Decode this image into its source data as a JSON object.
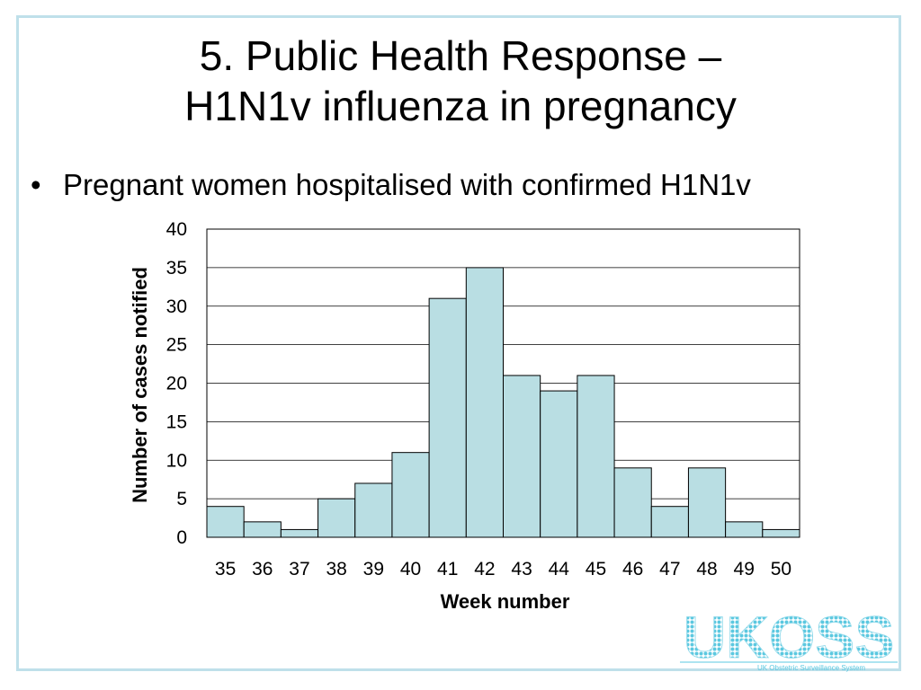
{
  "slide": {
    "title_line1": "5. Public Health Response –",
    "title_line2": "H1N1v influenza in pregnancy",
    "bullet": "Pregnant women hospitalised with confirmed H1N1v"
  },
  "logo": {
    "text": "UKOSS",
    "subtitle": "UK Obstetric Surveillance System",
    "color": "#5bc8e0"
  },
  "chart_data": {
    "type": "bar",
    "categories": [
      "35",
      "36",
      "37",
      "38",
      "39",
      "40",
      "41",
      "42",
      "43",
      "44",
      "45",
      "46",
      "47",
      "48",
      "49",
      "50"
    ],
    "values": [
      4,
      2,
      1,
      5,
      7,
      11,
      31,
      35,
      21,
      19,
      21,
      9,
      4,
      9,
      2,
      1
    ],
    "xlabel": "Week number",
    "ylabel": "Number of cases notified",
    "ylim": [
      0,
      40
    ],
    "yticks": [
      0,
      5,
      10,
      15,
      20,
      25,
      30,
      35,
      40
    ],
    "grid": true,
    "bar_color": "#b9dee3",
    "legend": "none"
  }
}
